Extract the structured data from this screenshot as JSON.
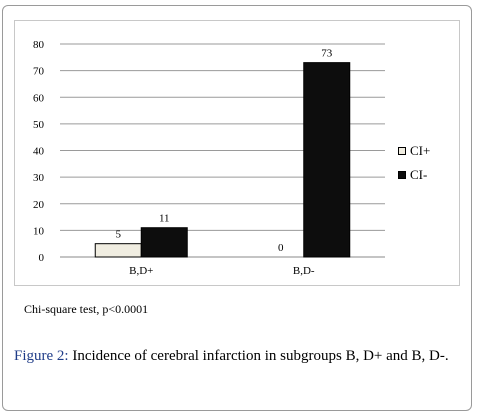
{
  "chart_data": {
    "type": "bar",
    "categories": [
      "B,D+",
      "B,D-"
    ],
    "series": [
      {
        "name": "CI+",
        "values": [
          5,
          0
        ],
        "color": "#f0ede1"
      },
      {
        "name": "CI-",
        "values": [
          11,
          73
        ],
        "color": "#0d0d0d"
      }
    ],
    "ylim": [
      0,
      80
    ],
    "yticks": [
      0,
      10,
      20,
      30,
      40,
      50,
      60,
      70,
      80
    ],
    "grid": true,
    "legend": "right"
  },
  "note": "Chi-square test, p<0.0001",
  "caption": {
    "label": "Figure 2:",
    "text": " Incidence of cerebral infarction in subgroups B, D+ and B, D-."
  }
}
